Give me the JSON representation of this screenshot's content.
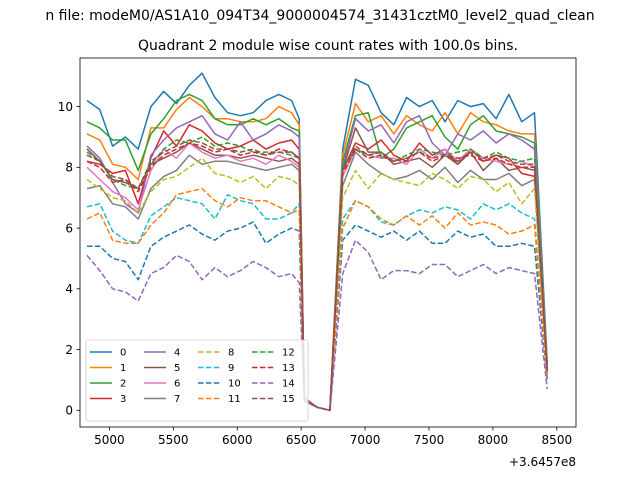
{
  "figure": {
    "suptitle": "n file: modeM0/AS1A10_094T34_9000004574_31431cztM0_level2_quad_clean",
    "title": "Quadrant 2 module wise count rates with 100.0s bins.",
    "offset_label": "+3.6457e8"
  },
  "chart_data": {
    "type": "line",
    "title": "Quadrant 2 module wise count rates with 100.0s bins.",
    "xlabel": "",
    "ylabel": "",
    "x_offset": 364570000,
    "xlim": [
      4770,
      8650
    ],
    "ylim": [
      -0.55,
      11.6
    ],
    "xticks": [
      5000,
      5500,
      6000,
      6500,
      7000,
      7500,
      8000,
      8500
    ],
    "yticks": [
      0,
      2,
      4,
      6,
      8,
      10
    ],
    "grid": false,
    "legend": {
      "placement": "lower-left",
      "columns": 4
    },
    "x": [
      4825,
      4925,
      5025,
      5125,
      5225,
      5325,
      5425,
      5525,
      5625,
      5725,
      5825,
      5925,
      6025,
      6125,
      6225,
      6325,
      6425,
      6485,
      6525,
      6625,
      6725,
      6825,
      6925,
      7025,
      7125,
      7225,
      7325,
      7425,
      7525,
      7625,
      7725,
      7825,
      7925,
      8025,
      8125,
      8225,
      8325,
      8425
    ],
    "series": [
      {
        "name": "0",
        "color": "#1f77b4",
        "dash": false,
        "values": [
          10.2,
          9.9,
          8.7,
          9.0,
          8.6,
          10.0,
          10.5,
          10.1,
          10.7,
          11.1,
          10.3,
          9.8,
          9.7,
          9.8,
          10.2,
          10.4,
          10.2,
          9.6,
          0.4,
          0.1,
          0.0,
          8.6,
          10.9,
          10.7,
          9.8,
          9.4,
          10.3,
          10.0,
          10.2,
          9.5,
          10.2,
          10.0,
          10.1,
          9.6,
          10.4,
          9.5,
          9.8,
          1.6
        ]
      },
      {
        "name": "1",
        "color": "#ff7f0e",
        "dash": false,
        "values": [
          9.1,
          8.9,
          8.1,
          8.0,
          7.6,
          9.3,
          9.3,
          9.9,
          10.3,
          10.0,
          9.6,
          9.6,
          9.5,
          9.5,
          9.6,
          10.0,
          9.8,
          9.4,
          0.4,
          0.1,
          0.0,
          8.4,
          10.1,
          9.5,
          9.7,
          9.1,
          9.7,
          9.4,
          9.2,
          9.8,
          9.1,
          9.8,
          9.5,
          9.4,
          9.2,
          9.1,
          9.1,
          1.5
        ]
      },
      {
        "name": "2",
        "color": "#2ca02c",
        "dash": false,
        "values": [
          9.5,
          9.3,
          8.9,
          8.9,
          7.9,
          9.1,
          9.6,
          10.2,
          10.4,
          10.2,
          9.6,
          9.4,
          9.4,
          9.6,
          9.4,
          9.6,
          9.3,
          9.2,
          0.4,
          0.1,
          0.0,
          8.2,
          9.7,
          9.8,
          8.3,
          8.6,
          9.3,
          9.5,
          9.7,
          9.0,
          8.6,
          9.4,
          9.7,
          9.2,
          9.1,
          9.0,
          8.8,
          1.5
        ]
      },
      {
        "name": "3",
        "color": "#d62728",
        "dash": false,
        "values": [
          8.2,
          8.1,
          7.8,
          7.9,
          6.8,
          8.3,
          9.2,
          8.7,
          9.4,
          9.2,
          8.8,
          8.6,
          8.7,
          8.9,
          8.6,
          8.8,
          8.9,
          8.6,
          0.4,
          0.1,
          0.0,
          7.9,
          8.8,
          8.6,
          8.9,
          8.4,
          8.2,
          8.8,
          8.4,
          8.6,
          8.1,
          8.6,
          8.2,
          8.4,
          8.3,
          7.8,
          7.7,
          1.4
        ]
      },
      {
        "name": "4",
        "color": "#9467bd",
        "dash": false,
        "values": [
          8.7,
          8.3,
          7.5,
          6.8,
          6.5,
          8.4,
          8.9,
          9.3,
          9.5,
          9.7,
          9.1,
          8.9,
          9.5,
          8.9,
          9.1,
          9.4,
          9.2,
          9.0,
          0.4,
          0.1,
          0.0,
          8.0,
          9.6,
          9.2,
          9.4,
          8.8,
          9.5,
          9.7,
          8.8,
          8.4,
          9.1,
          8.9,
          9.2,
          8.8,
          9.1,
          8.9,
          8.6,
          1.4
        ]
      },
      {
        "name": "5",
        "color": "#8c564b",
        "dash": false,
        "values": [
          8.6,
          8.2,
          7.6,
          7.5,
          7.3,
          8.1,
          8.3,
          8.5,
          8.8,
          8.6,
          8.4,
          8.4,
          8.3,
          8.4,
          8.3,
          8.2,
          8.3,
          8.1,
          0.4,
          0.1,
          0.0,
          7.9,
          9.3,
          8.5,
          8.5,
          8.1,
          8.2,
          8.3,
          8.0,
          8.4,
          8.1,
          8.5,
          7.9,
          8.3,
          7.9,
          8.0,
          7.9,
          1.3
        ]
      },
      {
        "name": "6",
        "color": "#e377c2",
        "dash": false,
        "values": [
          8.0,
          7.6,
          7.2,
          7.0,
          6.6,
          7.9,
          8.6,
          8.3,
          8.8,
          8.5,
          8.3,
          8.4,
          8.2,
          8.3,
          8.1,
          8.4,
          8.2,
          8.0,
          0.4,
          0.1,
          0.0,
          7.7,
          8.6,
          8.4,
          8.3,
          8.3,
          8.1,
          8.6,
          8.3,
          8.6,
          8.2,
          8.6,
          8.3,
          8.2,
          8.1,
          8.2,
          8.0,
          1.3
        ]
      },
      {
        "name": "7",
        "color": "#7f7f7f",
        "dash": false,
        "values": [
          7.3,
          7.4,
          6.8,
          6.7,
          6.3,
          7.3,
          7.7,
          7.9,
          8.4,
          8.1,
          8.2,
          8.2,
          8.1,
          8.0,
          7.9,
          8.0,
          8.1,
          7.9,
          0.4,
          0.1,
          0.0,
          7.4,
          8.5,
          8.1,
          7.8,
          7.6,
          7.7,
          7.9,
          7.6,
          8.0,
          7.5,
          7.9,
          7.6,
          7.6,
          7.8,
          7.4,
          7.6,
          1.2
        ]
      },
      {
        "name": "8",
        "color": "#bcbd22",
        "dash": true,
        "values": [
          7.6,
          7.3,
          7.0,
          6.9,
          6.5,
          7.2,
          7.6,
          7.7,
          8.0,
          8.3,
          7.8,
          7.7,
          7.5,
          7.7,
          7.3,
          7.7,
          7.6,
          7.4,
          0.4,
          0.1,
          0.0,
          7.0,
          7.9,
          7.3,
          7.8,
          7.6,
          7.5,
          7.4,
          7.8,
          7.6,
          7.3,
          7.7,
          7.6,
          7.2,
          7.5,
          6.8,
          7.3,
          1.2
        ]
      },
      {
        "name": "9",
        "color": "#17becf",
        "dash": true,
        "values": [
          6.7,
          6.8,
          5.9,
          5.6,
          5.5,
          6.4,
          6.7,
          7.0,
          6.9,
          6.8,
          6.3,
          7.1,
          6.9,
          6.8,
          6.3,
          6.3,
          6.5,
          6.8,
          0.3,
          0.1,
          0.0,
          6.3,
          6.9,
          6.7,
          6.2,
          6.1,
          6.4,
          6.6,
          6.5,
          6.7,
          6.6,
          6.3,
          6.8,
          6.6,
          6.8,
          6.5,
          6.3,
          1.1
        ]
      },
      {
        "name": "10",
        "color": "#1f77b4",
        "dash": true,
        "values": [
          5.4,
          5.4,
          5.0,
          4.9,
          4.3,
          5.4,
          5.7,
          5.9,
          6.1,
          5.8,
          5.6,
          5.9,
          6.0,
          6.2,
          5.5,
          5.8,
          6.0,
          5.9,
          0.3,
          0.1,
          0.0,
          5.6,
          6.1,
          5.9,
          5.7,
          5.9,
          5.6,
          5.9,
          5.5,
          5.5,
          5.9,
          5.7,
          5.8,
          5.4,
          5.4,
          5.5,
          5.4,
          1.0
        ]
      },
      {
        "name": "11",
        "color": "#ff7f0e",
        "dash": true,
        "values": [
          6.3,
          6.5,
          5.6,
          5.5,
          5.5,
          6.1,
          6.5,
          7.1,
          7.2,
          7.3,
          6.9,
          6.7,
          7.0,
          6.9,
          6.9,
          6.7,
          6.5,
          6.6,
          0.3,
          0.1,
          0.0,
          6.0,
          6.9,
          6.7,
          6.3,
          6.1,
          6.4,
          6.1,
          6.4,
          6.0,
          6.5,
          6.1,
          6.2,
          6.1,
          5.8,
          5.9,
          6.1,
          1.1
        ]
      },
      {
        "name": "12",
        "color": "#2ca02c",
        "dash": true,
        "values": [
          8.5,
          8.2,
          7.6,
          7.4,
          7.3,
          8.1,
          8.6,
          8.9,
          8.8,
          9.0,
          8.7,
          8.8,
          8.7,
          8.5,
          8.5,
          8.5,
          8.4,
          8.3,
          0.4,
          0.1,
          0.0,
          8.0,
          8.6,
          8.4,
          8.5,
          8.2,
          8.4,
          8.6,
          8.5,
          8.4,
          8.5,
          8.6,
          8.3,
          8.5,
          8.3,
          8.2,
          8.3,
          1.3
        ]
      },
      {
        "name": "13",
        "color": "#d62728",
        "dash": true,
        "values": [
          8.2,
          8.0,
          7.5,
          7.6,
          7.2,
          8.0,
          8.4,
          8.6,
          8.8,
          8.7,
          8.5,
          8.6,
          8.4,
          8.5,
          8.4,
          8.6,
          8.5,
          8.3,
          0.4,
          0.1,
          0.0,
          7.8,
          8.6,
          8.3,
          8.4,
          8.2,
          8.3,
          8.5,
          8.2,
          8.4,
          8.3,
          8.4,
          8.2,
          8.3,
          8.1,
          8.0,
          8.0,
          1.3
        ]
      },
      {
        "name": "14",
        "color": "#9467bd",
        "dash": true,
        "values": [
          5.1,
          4.6,
          4.0,
          3.9,
          3.6,
          4.5,
          4.7,
          5.1,
          4.9,
          4.3,
          4.7,
          4.4,
          4.6,
          4.9,
          4.7,
          4.4,
          4.5,
          4.2,
          0.3,
          0.1,
          0.0,
          4.5,
          5.6,
          5.2,
          4.3,
          4.6,
          4.6,
          4.5,
          4.8,
          4.8,
          4.4,
          4.6,
          4.8,
          4.5,
          4.7,
          4.6,
          4.5,
          0.7
        ]
      },
      {
        "name": "15",
        "color": "#8c564b",
        "dash": true,
        "values": [
          8.4,
          8.2,
          7.7,
          7.6,
          7.3,
          8.2,
          8.5,
          8.7,
          8.9,
          8.8,
          8.6,
          8.6,
          8.5,
          8.6,
          8.4,
          8.5,
          8.5,
          8.3,
          0.4,
          0.1,
          0.0,
          7.9,
          8.7,
          8.4,
          8.5,
          8.2,
          8.3,
          8.5,
          8.3,
          8.4,
          8.2,
          8.5,
          8.3,
          8.4,
          8.2,
          8.1,
          8.1,
          1.3
        ]
      }
    ]
  }
}
